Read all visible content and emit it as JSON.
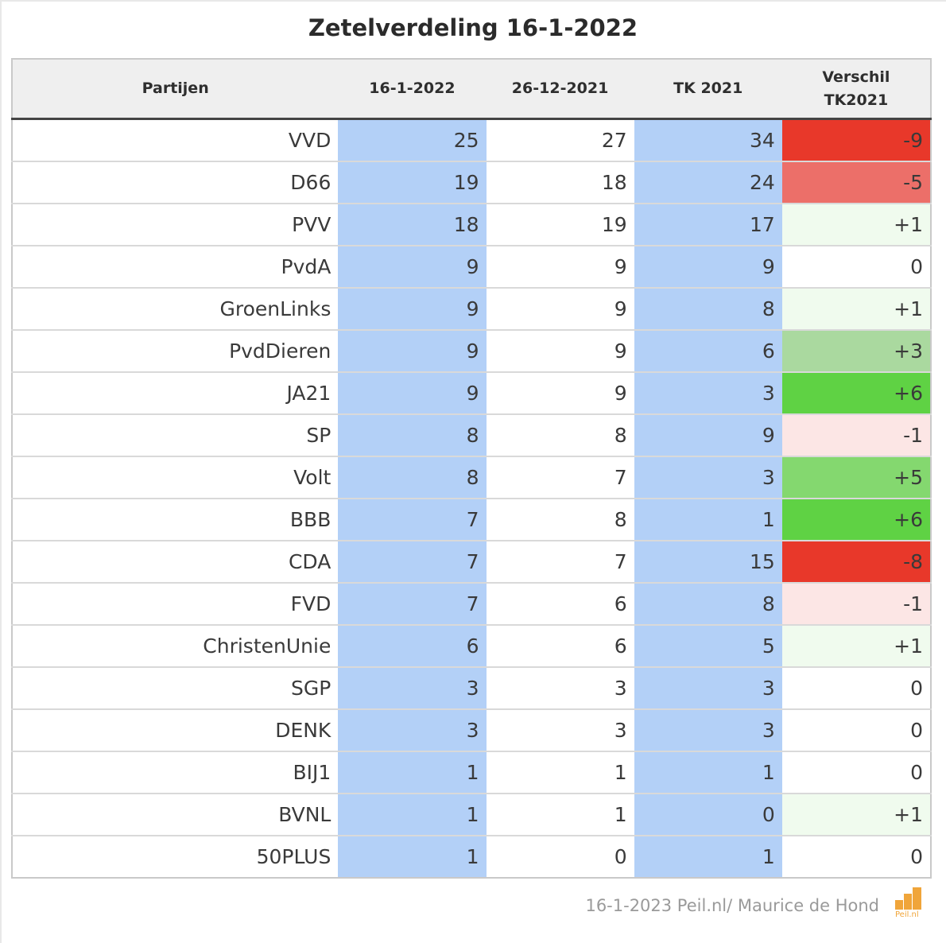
{
  "title": "Zetelverdeling 16-1-2022",
  "headers": {
    "party": "Partijen",
    "col1": "16-1-2022",
    "col2": "26-12-2021",
    "col3": "TK 2021",
    "col4_line1": "Verschil",
    "col4_line2": "TK2021"
  },
  "rows": [
    {
      "party": "VVD",
      "v1": "25",
      "v2": "27",
      "v3": "34",
      "diff": "-9",
      "diff_color": "#e8382a"
    },
    {
      "party": "D66",
      "v1": "19",
      "v2": "18",
      "v3": "24",
      "diff": "-5",
      "diff_color": "#ec6f69"
    },
    {
      "party": "PVV",
      "v1": "18",
      "v2": "19",
      "v3": "17",
      "diff": "+1",
      "diff_color": "#f0fbee"
    },
    {
      "party": "PvdA",
      "v1": "9",
      "v2": "9",
      "v3": "9",
      "diff": "0",
      "diff_color": "#ffffff"
    },
    {
      "party": "GroenLinks",
      "v1": "9",
      "v2": "9",
      "v3": "8",
      "diff": "+1",
      "diff_color": "#f0fbee"
    },
    {
      "party": "PvdDieren",
      "v1": "9",
      "v2": "9",
      "v3": "6",
      "diff": "+3",
      "diff_color": "#aad99f"
    },
    {
      "party": "JA21",
      "v1": "9",
      "v2": "9",
      "v3": "3",
      "diff": "+6",
      "diff_color": "#5fd244"
    },
    {
      "party": "SP",
      "v1": "8",
      "v2": "8",
      "v3": "9",
      "diff": "-1",
      "diff_color": "#fce6e5"
    },
    {
      "party": "Volt",
      "v1": "8",
      "v2": "7",
      "v3": "3",
      "diff": "+5",
      "diff_color": "#84d86f"
    },
    {
      "party": "BBB",
      "v1": "7",
      "v2": "8",
      "v3": "1",
      "diff": "+6",
      "diff_color": "#5fd244"
    },
    {
      "party": "CDA",
      "v1": "7",
      "v2": "7",
      "v3": "15",
      "diff": "-8",
      "diff_color": "#e8382a"
    },
    {
      "party": "FVD",
      "v1": "7",
      "v2": "6",
      "v3": "8",
      "diff": "-1",
      "diff_color": "#fce6e5"
    },
    {
      "party": "ChristenUnie",
      "v1": "6",
      "v2": "6",
      "v3": "5",
      "diff": "+1",
      "diff_color": "#f0fbee"
    },
    {
      "party": "SGP",
      "v1": "3",
      "v2": "3",
      "v3": "3",
      "diff": "0",
      "diff_color": "#ffffff"
    },
    {
      "party": "DENK",
      "v1": "3",
      "v2": "3",
      "v3": "3",
      "diff": "0",
      "diff_color": "#ffffff"
    },
    {
      "party": "BIJ1",
      "v1": "1",
      "v2": "1",
      "v3": "1",
      "diff": "0",
      "diff_color": "#ffffff"
    },
    {
      "party": "BVNL",
      "v1": "1",
      "v2": "1",
      "v3": "0",
      "diff": "+1",
      "diff_color": "#f0fbee"
    },
    {
      "party": "50PLUS",
      "v1": "1",
      "v2": "0",
      "v3": "1",
      "diff": "0",
      "diff_color": "#ffffff"
    }
  ],
  "footer": "16-1-2023 Peil.nl/ Maurice de Hond",
  "logo_text": "Peil.nl"
}
